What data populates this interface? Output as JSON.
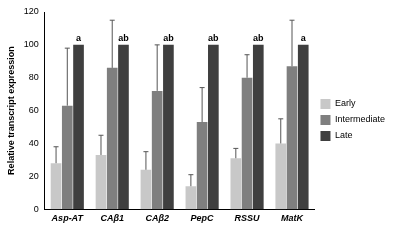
{
  "chart_data": {
    "type": "bar",
    "y_label": "Relative transcript expression",
    "categories": [
      "Asp-AT",
      "CAβ1",
      "CAβ2",
      "PepC",
      "RSSU",
      "MatK"
    ],
    "series": [
      {
        "name": "Early",
        "color": "#c8c8c8",
        "values": [
          28,
          33,
          24,
          14,
          31,
          40
        ],
        "errors": [
          10,
          12,
          11,
          7,
          6,
          15
        ]
      },
      {
        "name": "Intermediate",
        "color": "#7f7f7f",
        "values": [
          63,
          86,
          72,
          53,
          80,
          87
        ],
        "errors": [
          35,
          29,
          28,
          21,
          14,
          28
        ]
      },
      {
        "name": "Late",
        "color": "#3f3f3f",
        "values": [
          100,
          100,
          100,
          100,
          100,
          100
        ],
        "errors": [
          0,
          0,
          0,
          0,
          0,
          0
        ]
      }
    ],
    "annotations": [
      {
        "category": "Asp-AT",
        "series": "Late",
        "text": "a"
      },
      {
        "category": "CAβ1",
        "series": "Late",
        "text": "ab"
      },
      {
        "category": "CAβ2",
        "series": "Late",
        "text": "ab"
      },
      {
        "category": "PepC",
        "series": "Late",
        "text": "ab"
      },
      {
        "category": "RSSU",
        "series": "Late",
        "text": "ab"
      },
      {
        "category": "MatK",
        "series": "Late",
        "text": "a"
      }
    ],
    "ylim": [
      0,
      120
    ],
    "yticks": [
      0,
      20,
      40,
      60,
      80,
      100,
      120
    ],
    "grid": false,
    "legend": "right"
  }
}
